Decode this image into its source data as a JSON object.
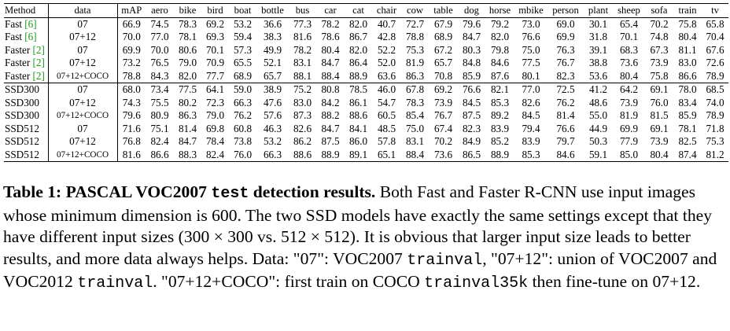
{
  "table": {
    "columns": [
      "Method",
      "data",
      "mAP",
      "aero",
      "bike",
      "bird",
      "boat",
      "bottle",
      "bus",
      "car",
      "cat",
      "chair",
      "cow",
      "table",
      "dog",
      "horse",
      "mbike",
      "person",
      "plant",
      "sheep",
      "sofa",
      "train",
      "tv"
    ],
    "rows": [
      {
        "method": "Fast",
        "cite": "[6]",
        "data": "07",
        "values": [
          "66.9",
          "74.5",
          "78.3",
          "69.2",
          "53.2",
          "36.6",
          "77.3",
          "78.2",
          "82.0",
          "40.7",
          "72.7",
          "67.9",
          "79.6",
          "79.2",
          "73.0",
          "69.0",
          "30.1",
          "65.4",
          "70.2",
          "75.8",
          "65.8"
        ],
        "bold": []
      },
      {
        "method": "Fast",
        "cite": "[6]",
        "data": "07+12",
        "values": [
          "70.0",
          "77.0",
          "78.1",
          "69.3",
          "59.4",
          "38.3",
          "81.6",
          "78.6",
          "86.7",
          "42.8",
          "78.8",
          "68.9",
          "84.7",
          "82.0",
          "76.6",
          "69.9",
          "31.8",
          "70.1",
          "74.8",
          "80.4",
          "70.4"
        ],
        "bold": []
      },
      {
        "method": "Faster",
        "cite": "[2]",
        "data": "07",
        "values": [
          "69.9",
          "70.0",
          "80.6",
          "70.1",
          "57.3",
          "49.9",
          "78.2",
          "80.4",
          "82.0",
          "52.2",
          "75.3",
          "67.2",
          "80.3",
          "79.8",
          "75.0",
          "76.3",
          "39.1",
          "68.3",
          "67.3",
          "81.1",
          "67.6"
        ],
        "bold": []
      },
      {
        "method": "Faster",
        "cite": "[2]",
        "data": "07+12",
        "values": [
          "73.2",
          "76.5",
          "79.0",
          "70.9",
          "65.5",
          "52.1",
          "83.1",
          "84.7",
          "86.4",
          "52.0",
          "81.9",
          "65.7",
          "84.8",
          "84.6",
          "77.5",
          "76.7",
          "38.8",
          "73.6",
          "73.9",
          "83.0",
          "72.6"
        ],
        "bold": []
      },
      {
        "method": "Faster",
        "cite": "[2]",
        "data": "07+12+COCO",
        "values": [
          "78.8",
          "84.3",
          "82.0",
          "77.7",
          "68.9",
          "65.7",
          "88.1",
          "88.4",
          "88.9",
          "63.6",
          "86.3",
          "70.8",
          "85.9",
          "87.6",
          "80.1",
          "82.3",
          "53.6",
          "80.4",
          "75.8",
          "86.6",
          "78.9"
        ],
        "bold": []
      },
      {
        "method": "SSD300",
        "cite": "",
        "data": "07",
        "values": [
          "68.0",
          "73.4",
          "77.5",
          "64.1",
          "59.0",
          "38.9",
          "75.2",
          "80.8",
          "78.5",
          "46.0",
          "67.8",
          "69.2",
          "76.6",
          "82.1",
          "77.0",
          "72.5",
          "41.2",
          "64.2",
          "69.1",
          "78.0",
          "68.5"
        ],
        "bold": []
      },
      {
        "method": "SSD300",
        "cite": "",
        "data": "07+12",
        "values": [
          "74.3",
          "75.5",
          "80.2",
          "72.3",
          "66.3",
          "47.6",
          "83.0",
          "84.2",
          "86.1",
          "54.7",
          "78.3",
          "73.9",
          "84.5",
          "85.3",
          "82.6",
          "76.2",
          "48.6",
          "73.9",
          "76.0",
          "83.4",
          "74.0"
        ],
        "bold": []
      },
      {
        "method": "SSD300",
        "cite": "",
        "data": "07+12+COCO",
        "values": [
          "79.6",
          "80.9",
          "86.3",
          "79.0",
          "76.2",
          "57.6",
          "87.3",
          "88.2",
          "88.6",
          "60.5",
          "85.4",
          "76.7",
          "87.5",
          "89.2",
          "84.5",
          "81.4",
          "55.0",
          "81.9",
          "81.5",
          "85.9",
          "78.9"
        ],
        "bold": [
          4,
          12,
          13,
          14,
          19
        ]
      },
      {
        "method": "SSD512",
        "cite": "",
        "data": "07",
        "values": [
          "71.6",
          "75.1",
          "81.4",
          "69.8",
          "60.8",
          "46.3",
          "82.6",
          "84.7",
          "84.1",
          "48.5",
          "75.0",
          "67.4",
          "82.3",
          "83.9",
          "79.4",
          "76.6",
          "44.9",
          "69.9",
          "69.1",
          "78.1",
          "71.8"
        ],
        "bold": []
      },
      {
        "method": "SSD512",
        "cite": "",
        "data": "07+12",
        "values": [
          "76.8",
          "82.4",
          "84.7",
          "78.4",
          "73.8",
          "53.2",
          "86.2",
          "87.5",
          "86.0",
          "57.8",
          "83.1",
          "70.2",
          "84.9",
          "85.2",
          "83.9",
          "79.7",
          "50.3",
          "77.9",
          "73.9",
          "82.5",
          "75.3"
        ],
        "bold": []
      },
      {
        "method": "SSD512",
        "cite": "",
        "data": "07+12+COCO",
        "values": [
          "81.6",
          "86.6",
          "88.3",
          "82.4",
          "76.0",
          "66.3",
          "88.6",
          "88.9",
          "89.1",
          "65.1",
          "88.4",
          "73.6",
          "86.5",
          "88.9",
          "85.3",
          "84.6",
          "59.1",
          "85.0",
          "80.4",
          "87.4",
          "81.2"
        ],
        "bold": [
          0,
          1,
          2,
          3,
          5,
          6,
          7,
          8,
          9,
          10,
          15,
          16,
          17,
          18,
          20,
          21
        ]
      }
    ]
  },
  "caption": {
    "label": "Table 1:",
    "title_a": "PASCAL VOC2007",
    "title_mono": "test",
    "title_b": "detection results.",
    "s1": "Both Fast and Faster R-CNN use input images whose minimum dimension is 600. The two SSD models have exactly the same settings except that they have different input sizes (300 × 300 vs. 512 × 512). It is obvious that larger input size leads to better results, and more data always helps. Data: \"07\": VOC2007",
    "m1": "trainval",
    "s2": ", \"07+12\": union of VOC2007 and VOC2012",
    "m2": "trainval",
    "s3": ". \"07+12+COCO\": first train on COCO",
    "m3": "trainval35k",
    "s4": "then fine-tune on 07+12."
  }
}
